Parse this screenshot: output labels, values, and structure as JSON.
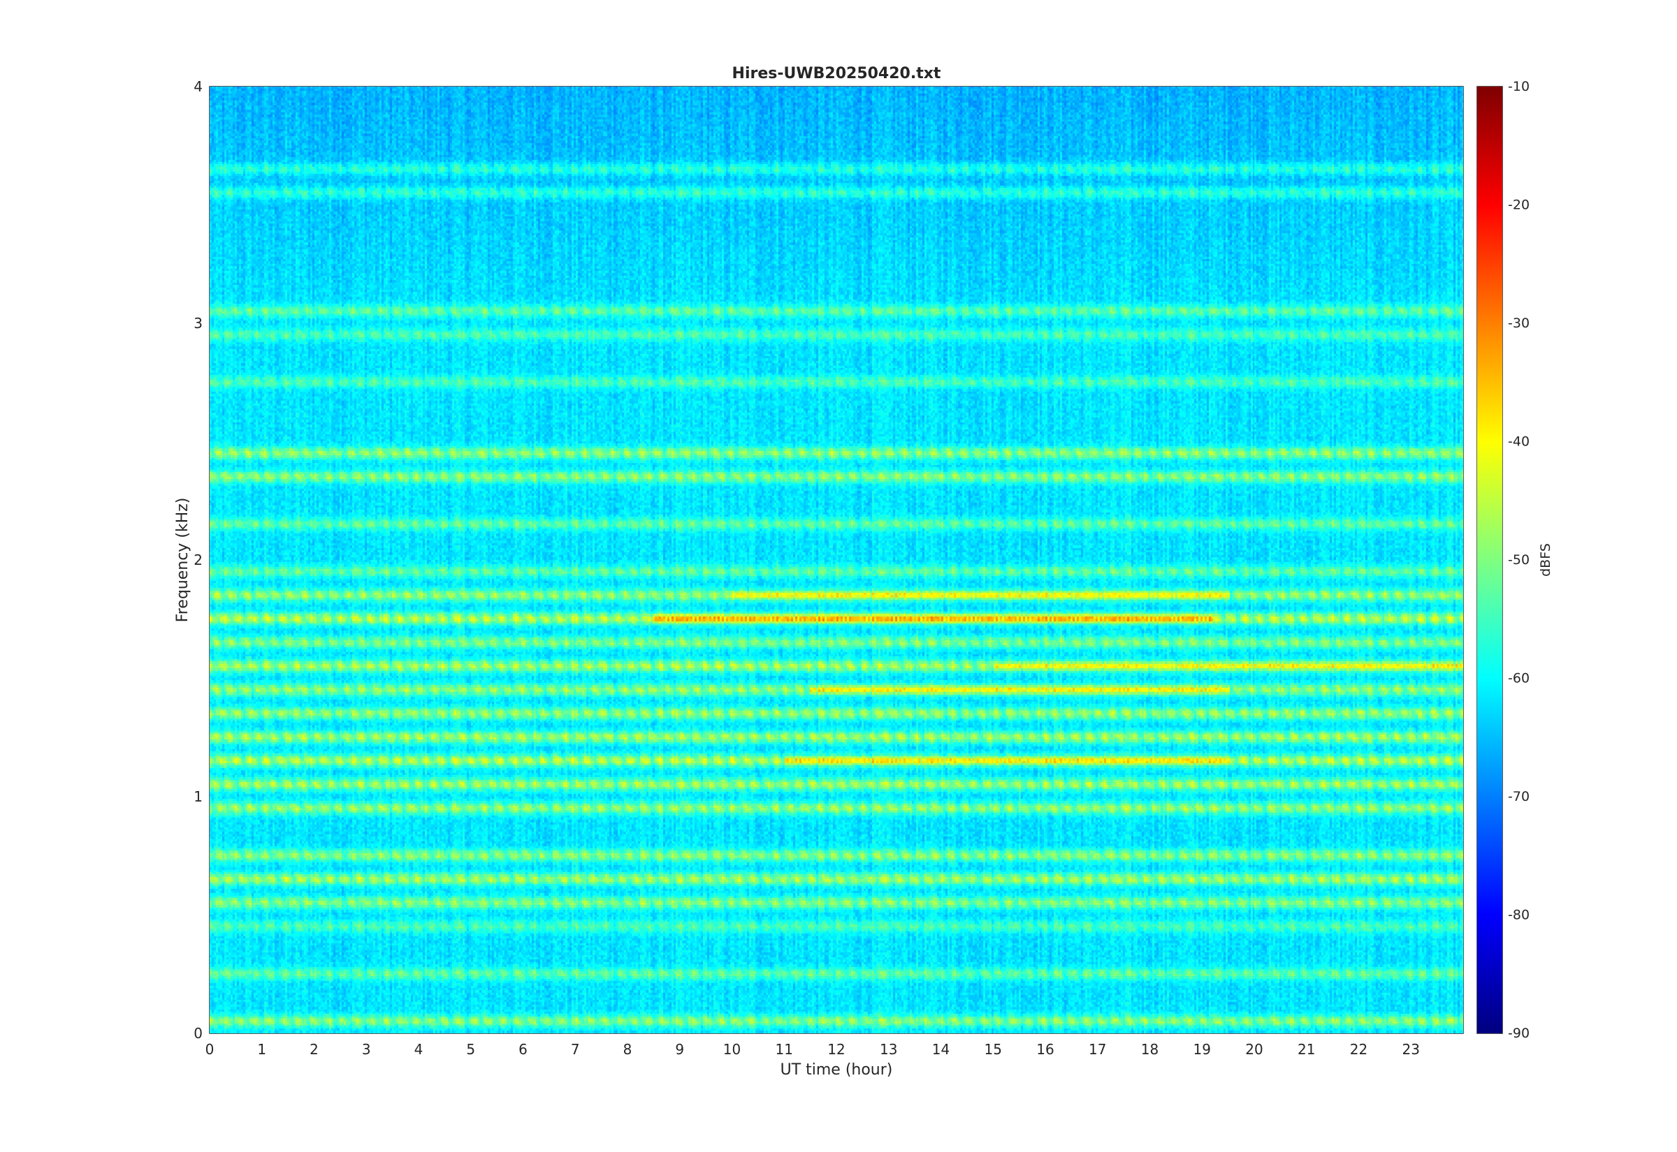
{
  "chart_data": {
    "type": "heatmap",
    "title": "Hires-UWB20250420.txt",
    "xlabel": "UT time (hour)",
    "ylabel": "Frequency (kHz)",
    "xlim": [
      0,
      24
    ],
    "ylim": [
      0,
      4
    ],
    "x_ticks": [
      "0",
      "1",
      "2",
      "3",
      "4",
      "5",
      "6",
      "7",
      "8",
      "9",
      "10",
      "11",
      "12",
      "13",
      "14",
      "15",
      "16",
      "17",
      "18",
      "19",
      "20",
      "21",
      "22",
      "23"
    ],
    "y_ticks": [
      "0",
      "1",
      "2",
      "3",
      "4"
    ],
    "colorbar": {
      "label": "dBFS",
      "range": [
        -90,
        -10
      ],
      "ticks": [
        "-90",
        "-80",
        "-70",
        "-60",
        "-50",
        "-40",
        "-30",
        "-20",
        "-10"
      ],
      "colormap": "jet"
    },
    "background_level_dbfs": -62,
    "bands": [
      {
        "freq_khz": 0.05,
        "level_dbfs": -46
      },
      {
        "freq_khz": 0.25,
        "level_dbfs": -50
      },
      {
        "freq_khz": 0.45,
        "level_dbfs": -52
      },
      {
        "freq_khz": 0.55,
        "level_dbfs": -46
      },
      {
        "freq_khz": 0.65,
        "level_dbfs": -44
      },
      {
        "freq_khz": 0.75,
        "level_dbfs": -46
      },
      {
        "freq_khz": 0.95,
        "level_dbfs": -45
      },
      {
        "freq_khz": 1.05,
        "level_dbfs": -44
      },
      {
        "freq_khz": 1.15,
        "level_dbfs": -42
      },
      {
        "freq_khz": 1.25,
        "level_dbfs": -44
      },
      {
        "freq_khz": 1.35,
        "level_dbfs": -45
      },
      {
        "freq_khz": 1.45,
        "level_dbfs": -45
      },
      {
        "freq_khz": 1.55,
        "level_dbfs": -43
      },
      {
        "freq_khz": 1.65,
        "level_dbfs": -47
      },
      {
        "freq_khz": 1.75,
        "level_dbfs": -42
      },
      {
        "freq_khz": 1.85,
        "level_dbfs": -45
      },
      {
        "freq_khz": 1.95,
        "level_dbfs": -50
      },
      {
        "freq_khz": 2.15,
        "level_dbfs": -50
      },
      {
        "freq_khz": 2.35,
        "level_dbfs": -46
      },
      {
        "freq_khz": 2.45,
        "level_dbfs": -45
      },
      {
        "freq_khz": 2.75,
        "level_dbfs": -52
      },
      {
        "freq_khz": 2.95,
        "level_dbfs": -52
      },
      {
        "freq_khz": 3.05,
        "level_dbfs": -50
      },
      {
        "freq_khz": 3.55,
        "level_dbfs": -54
      },
      {
        "freq_khz": 3.65,
        "level_dbfs": -55
      }
    ],
    "hotspots": [
      {
        "freq_khz": 1.75,
        "t_start_hour": 8.5,
        "t_end_hour": 19.2,
        "level_dbfs": -30
      },
      {
        "freq_khz": 1.15,
        "t_start_hour": 11.0,
        "t_end_hour": 19.5,
        "level_dbfs": -35
      },
      {
        "freq_khz": 1.45,
        "t_start_hour": 11.5,
        "t_end_hour": 19.5,
        "level_dbfs": -36
      },
      {
        "freq_khz": 1.55,
        "t_start_hour": 15.0,
        "t_end_hour": 24.0,
        "level_dbfs": -37
      },
      {
        "freq_khz": 1.85,
        "t_start_hour": 10.0,
        "t_end_hour": 19.5,
        "level_dbfs": -37
      }
    ]
  }
}
